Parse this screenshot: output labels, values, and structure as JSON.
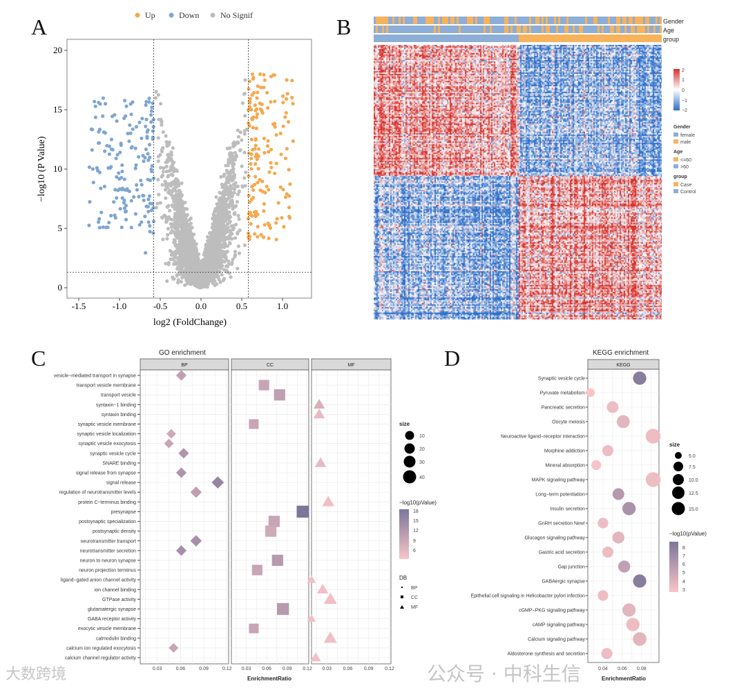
{
  "panels": {
    "a": "A",
    "b": "B",
    "c": "C",
    "d": "D"
  },
  "watermarks": {
    "left": "大数跨境",
    "right": "公众号 · 中科生信"
  },
  "colors": {
    "up": "#F5A94E",
    "down": "#7FA6D1",
    "nosig": "#BDBDBD",
    "low": "#F9C4C8",
    "high": "#7C7699",
    "hm_high": "#D7302B",
    "hm_low": "#2F6FC9",
    "orange": "#F7B25C",
    "blue": "#8DAED6"
  },
  "chart_data": [
    {
      "type": "scatter",
      "name": "volcano",
      "xlabel": "log2 (FoldChange)",
      "ylabel": "−log10 (P Value)",
      "xlim": [
        -1.55,
        1.35
      ],
      "ylim": [
        -0.5,
        20.8
      ],
      "xticks": [
        "-1.5",
        "-1.0",
        "-0.5",
        "0.0",
        "0.5",
        "1.0"
      ],
      "xtick_values": [
        -1.5,
        -1.0,
        -0.5,
        0.0,
        0.5,
        1.0
      ],
      "yticks": [
        "0",
        "5",
        "10",
        "15",
        "20"
      ],
      "ytick_values": [
        0,
        5,
        10,
        15,
        20
      ],
      "fc_threshold": 0.58,
      "p_threshold": 1.3,
      "legend": [
        {
          "label": "Up"
        },
        {
          "label": "Down"
        },
        {
          "label": "No Signif"
        }
      ],
      "legend_position": "top"
    },
    {
      "type": "heatmap",
      "name": "expression-heatmap",
      "annotations": [
        "Gender",
        "Age",
        "group"
      ],
      "scale_ticks": [
        "2",
        "1",
        "0",
        "−1",
        "−2"
      ],
      "legend_groups": [
        {
          "title": "Gender",
          "items": [
            "female",
            "male"
          ]
        },
        {
          "title": "Age",
          "items": [
            "<=60",
            ">60"
          ]
        },
        {
          "title": "group",
          "items": [
            "Case",
            "Control"
          ]
        }
      ]
    },
    {
      "type": "scatter",
      "name": "go-enrichment",
      "title": "GO enrichment",
      "facets": [
        "BP",
        "CC",
        "MF"
      ],
      "xlabel": "EnrichmentRatio",
      "xticks": [
        "0.03",
        "0.06",
        "0.09",
        "0.12"
      ],
      "xlim": [
        0.008,
        0.122
      ],
      "terms": [
        {
          "term": "vesicle−mediated transport in synapse",
          "db": "BP",
          "ratio": 0.061,
          "p": 10,
          "size": 20
        },
        {
          "term": "transport vesicle membrane",
          "db": "CC",
          "ratio": 0.056,
          "p": 9,
          "size": 30
        },
        {
          "term": "transport vesicle",
          "db": "CC",
          "ratio": 0.079,
          "p": 10,
          "size": 35
        },
        {
          "term": "syntaxin−1 binding",
          "db": "MF",
          "ratio": 0.019,
          "p": 7,
          "size": 25
        },
        {
          "term": "syntaxin binding",
          "db": "MF",
          "ratio": 0.019,
          "p": 5,
          "size": 25
        },
        {
          "term": "synaptic vesicle membrane",
          "db": "CC",
          "ratio": 0.041,
          "p": 9,
          "size": 25
        },
        {
          "term": "synaptic vesicle localization",
          "db": "BP",
          "ratio": 0.048,
          "p": 8,
          "size": 15
        },
        {
          "term": "synaptic vesicle exocytosis",
          "db": "BP",
          "ratio": 0.045,
          "p": 9,
          "size": 15
        },
        {
          "term": "synaptic vesicle cycle",
          "db": "BP",
          "ratio": 0.064,
          "p": 12,
          "size": 20
        },
        {
          "term": "SNARE binding",
          "db": "MF",
          "ratio": 0.021,
          "p": 5,
          "size": 25
        },
        {
          "term": "signal release from synapse",
          "db": "BP",
          "ratio": 0.061,
          "p": 12,
          "size": 20
        },
        {
          "term": "signal release",
          "db": "BP",
          "ratio": 0.108,
          "p": 15,
          "size": 30
        },
        {
          "term": "regulation of neurotransmitter levels",
          "db": "BP",
          "ratio": 0.08,
          "p": 10,
          "size": 25
        },
        {
          "term": "protein C−terminus binding",
          "db": "MF",
          "ratio": 0.032,
          "p": 4,
          "size": 30
        },
        {
          "term": "presynapse",
          "db": "CC",
          "ratio": 0.113,
          "p": 18,
          "size": 40
        },
        {
          "term": "postsynaptic specialization",
          "db": "CC",
          "ratio": 0.071,
          "p": 9,
          "size": 35
        },
        {
          "term": "postsynaptic density",
          "db": "CC",
          "ratio": 0.066,
          "p": 8,
          "size": 35
        },
        {
          "term": "neurotransmitter transport",
          "db": "BP",
          "ratio": 0.08,
          "p": 13,
          "size": 25
        },
        {
          "term": "neurotransmitter secretion",
          "db": "BP",
          "ratio": 0.061,
          "p": 13,
          "size": 20
        },
        {
          "term": "neuron to neuron synapse",
          "db": "CC",
          "ratio": 0.076,
          "p": 11,
          "size": 35
        },
        {
          "term": "neuron projection terminus",
          "db": "CC",
          "ratio": 0.046,
          "p": 9,
          "size": 30
        },
        {
          "term": "ligand−gated anion channel activity",
          "db": "MF",
          "ratio": 0.008,
          "p": 4,
          "size": 10
        },
        {
          "term": "ion channel binding",
          "db": "MF",
          "ratio": 0.024,
          "p": 4,
          "size": 25
        },
        {
          "term": "GTPase activity",
          "db": "MF",
          "ratio": 0.035,
          "p": 4,
          "size": 35
        },
        {
          "term": "glutamatergic synapse",
          "db": "CC",
          "ratio": 0.084,
          "p": 11,
          "size": 40
        },
        {
          "term": "GABA receptor activity",
          "db": "MF",
          "ratio": 0.008,
          "p": 4,
          "size": 10
        },
        {
          "term": "exocytic vesicle membrane",
          "db": "CC",
          "ratio": 0.041,
          "p": 9,
          "size": 25
        },
        {
          "term": "calmodulin binding",
          "db": "MF",
          "ratio": 0.035,
          "p": 4,
          "size": 35
        },
        {
          "term": "calcium ion regulated exocytosis",
          "db": "BP",
          "ratio": 0.051,
          "p": 9,
          "size": 15
        },
        {
          "term": "calcium channel regulator activity",
          "db": "MF",
          "ratio": 0.014,
          "p": 4,
          "size": 20
        }
      ],
      "size_legend": {
        "title": "size",
        "values": [
          "10",
          "20",
          "30",
          "40"
        ]
      },
      "color_legend": {
        "title": "−log10(pValue)",
        "ticks": [
          "18",
          "15",
          "12",
          "9",
          "6"
        ],
        "range": [
          3,
          18
        ]
      },
      "db_legend": {
        "title": "DB",
        "items": [
          "BP",
          "CC",
          "MF"
        ]
      }
    },
    {
      "type": "scatter",
      "name": "kegg-enrichment",
      "title": "KEGG enrichment",
      "facets": [
        "KEGG"
      ],
      "xlabel": "EnrichmentRatio",
      "xticks": [
        "0.04",
        "0.06",
        "0.08"
      ],
      "xlim": [
        0.0243,
        0.098
      ],
      "terms": [
        {
          "term": "Synaptic vesicle cycle",
          "ratio": 0.078,
          "p": 8,
          "size": 12.5
        },
        {
          "term": "Pyruvate metabolism",
          "ratio": 0.027,
          "p": 3,
          "size": 5
        },
        {
          "term": "Pancreatic secretion",
          "ratio": 0.05,
          "p": 3.5,
          "size": 10
        },
        {
          "term": "Oocyte meiosis",
          "ratio": 0.061,
          "p": 4,
          "size": 12
        },
        {
          "term": "Neuroactive ligand−receptor interaction",
          "ratio": 0.092,
          "p": 3.5,
          "size": 15
        },
        {
          "term": "Morphine addiction",
          "ratio": 0.045,
          "p": 3.5,
          "size": 9
        },
        {
          "term": "Mineral absorption",
          "ratio": 0.033,
          "p": 3,
          "size": 7
        },
        {
          "term": "MAPK signaling pathway",
          "ratio": 0.092,
          "p": 3.5,
          "size": 15
        },
        {
          "term": "Long−term potentiation",
          "ratio": 0.056,
          "p": 6,
          "size": 10
        },
        {
          "term": "Insulin secretion",
          "ratio": 0.067,
          "p": 6.5,
          "size": 12.5
        },
        {
          "term": "GnRH secretion New!",
          "ratio": 0.04,
          "p": 3.5,
          "size": 8
        },
        {
          "term": "Glucagon signaling pathway",
          "ratio": 0.056,
          "p": 4,
          "size": 10.5
        },
        {
          "term": "Gastric acid secretion",
          "ratio": 0.045,
          "p": 3.5,
          "size": 9
        },
        {
          "term": "Gap junction",
          "ratio": 0.062,
          "p": 5.5,
          "size": 10.5
        },
        {
          "term": "GABAergic synapse",
          "ratio": 0.078,
          "p": 8,
          "size": 12.5
        },
        {
          "term": "Epithelial cell signaling in Helicobacter pylori infection",
          "ratio": 0.04,
          "p": 3.5,
          "size": 8
        },
        {
          "term": "cGMP−PKG signaling pathway",
          "ratio": 0.067,
          "p": 4,
          "size": 12.5
        },
        {
          "term": "cAMP signaling pathway",
          "ratio": 0.071,
          "p": 3.5,
          "size": 12.5
        },
        {
          "term": "Calcium signaling pathway",
          "ratio": 0.078,
          "p": 4,
          "size": 13
        },
        {
          "term": "Aldosterone synthesis and secretion",
          "ratio": 0.044,
          "p": 3.5,
          "size": 9
        }
      ],
      "size_legend": {
        "title": "size",
        "values": [
          "5.0",
          "7.5",
          "10.0",
          "12.5",
          "15.0"
        ]
      },
      "color_legend": {
        "title": "−log10(pValue)",
        "ticks": [
          "8",
          "7",
          "6",
          "5",
          "4",
          "3"
        ],
        "range": [
          3,
          8.5
        ]
      }
    }
  ]
}
